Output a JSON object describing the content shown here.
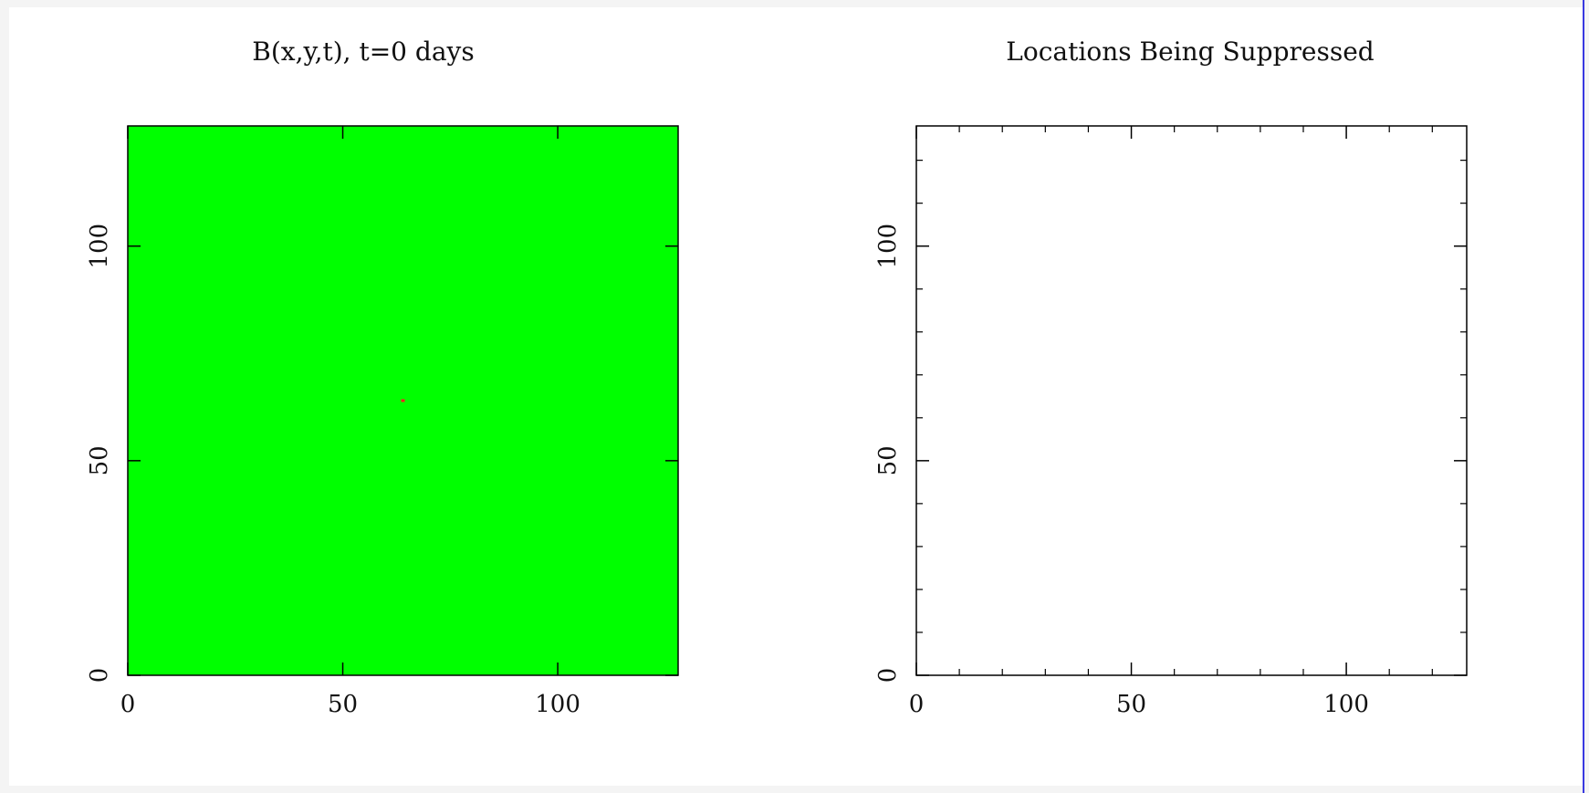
{
  "colors": {
    "field": "#00ff00",
    "marker": "#ff2020",
    "axes": "#000000",
    "background": "#ffffff"
  },
  "chart_data": [
    {
      "type": "heatmap",
      "title": "B(x,y,t), t=0 days",
      "xlim": [
        0,
        128
      ],
      "ylim": [
        0,
        128
      ],
      "xticks": [
        0,
        50,
        100
      ],
      "yticks": [
        0,
        50,
        100
      ],
      "minor_ticks": false,
      "fill_color": "#00ff00",
      "points": [
        {
          "x": 64,
          "y": 64,
          "color": "#ff2020"
        }
      ]
    },
    {
      "type": "scatter",
      "title": "Locations Being Suppressed",
      "xlim": [
        0,
        128
      ],
      "ylim": [
        0,
        128
      ],
      "xticks": [
        0,
        50,
        100
      ],
      "yticks": [
        0,
        50,
        100
      ],
      "minor_step": 10,
      "minor_ticks": true,
      "points": []
    }
  ]
}
